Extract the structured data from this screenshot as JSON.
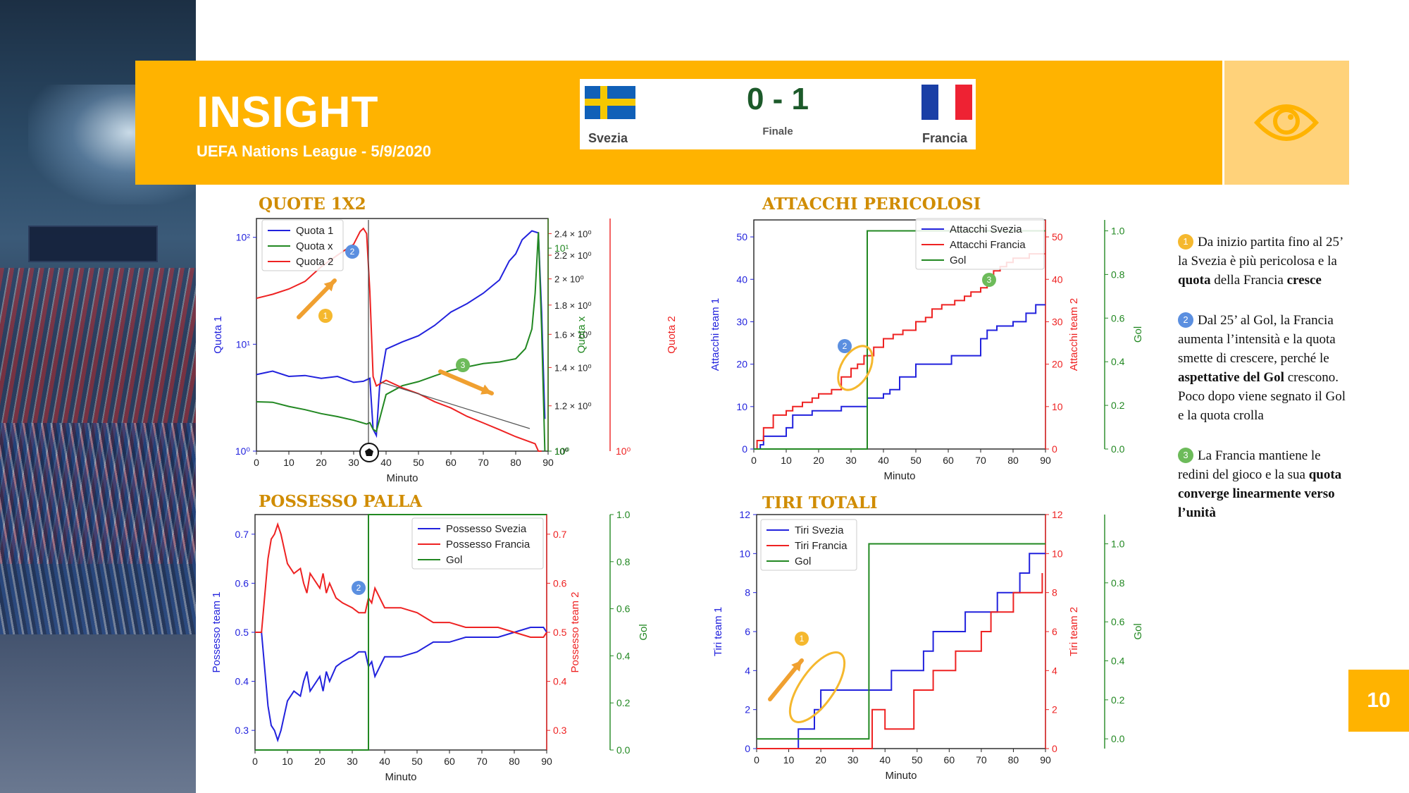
{
  "header": {
    "title": "INSIGHT",
    "subtitle": "UEFA Nations League  - 5/9/2020",
    "eye_icon": "eye-icon"
  },
  "match": {
    "home": "Svezia",
    "away": "Francia",
    "score": "0 - 1",
    "status": "Finale"
  },
  "notes": [
    {
      "badge": "1",
      "color": "#F5B82E",
      "html": "Da inizio partita fino al 25’ la Svezia è più pericolosa e la <b>quota</b> della Francia <b>cresce</b>"
    },
    {
      "badge": "2",
      "color": "#5B8FE0",
      "html": "Dal 25’ al Gol, la Francia aumenta l’intensità e la quota smette di crescere, perché le <b>aspettative del Gol</b> crescono. Poco dopo viene segnato il Gol e la quota crolla"
    },
    {
      "badge": "3",
      "color": "#6DBB5A",
      "html": "La Francia mantiene le redini del gioco e la sua <b>quota converge linearmente verso l’unità</b>"
    }
  ],
  "page_number": "10",
  "chart_data": [
    {
      "id": "quote",
      "type": "line",
      "title": "QUOTE 1X2",
      "xlabel": "Minuto",
      "xlim": [
        0,
        90
      ],
      "xticks": [
        0,
        10,
        20,
        30,
        40,
        50,
        60,
        70,
        80,
        90
      ],
      "axes": {
        "left": {
          "label": "Quota 1",
          "color": "#2222dd",
          "scale": "log",
          "lim": [
            1,
            150
          ],
          "ticks": [
            1,
            10,
            100
          ],
          "ticklabels": [
            "10⁰",
            "10¹",
            "10²"
          ]
        },
        "right1": {
          "label": "Quota 2",
          "color": "#ee2222",
          "scale": "log",
          "lim": [
            1,
            2.55
          ],
          "ticks": [
            1,
            1.2,
            1.4,
            1.6,
            1.8,
            2,
            2.2,
            2.4
          ],
          "ticklabels": [
            "10⁰",
            "1.2 × 10⁰",
            "1.4 × 10⁰",
            "1.6 × 10⁰",
            "1.8 × 10⁰",
            "2 × 10⁰",
            "2.2 × 10⁰",
            "2.4 × 10⁰"
          ]
        },
        "right2": {
          "label": "Quota x",
          "color": "#228822",
          "scale": "log",
          "lim": [
            1,
            14
          ],
          "ticks": [
            1,
            10
          ],
          "ticklabels": [
            "10⁰",
            "10¹"
          ]
        }
      },
      "series": [
        {
          "name": "Quota 1",
          "axis": "left",
          "color": "#2222dd",
          "x": [
            0,
            5,
            10,
            15,
            20,
            25,
            30,
            33,
            35,
            36,
            37,
            38,
            40,
            45,
            50,
            55,
            60,
            65,
            70,
            75,
            78,
            80,
            82,
            85,
            87,
            88,
            89
          ],
          "y": [
            5.2,
            5.6,
            5.0,
            5.1,
            4.8,
            5.0,
            4.4,
            4.5,
            4.8,
            1.6,
            1.4,
            4.0,
            9.0,
            10.5,
            12.0,
            15.0,
            20.0,
            24.0,
            30.0,
            40.0,
            60.0,
            70.0,
            95.0,
            115.0,
            110.0,
            20.0,
            2.0
          ]
        },
        {
          "name": "Quota x",
          "axis": "right2",
          "color": "#228822",
          "x": [
            0,
            5,
            10,
            15,
            20,
            25,
            30,
            34,
            35,
            36,
            37,
            40,
            45,
            50,
            55,
            60,
            65,
            70,
            75,
            80,
            83,
            85,
            86,
            87,
            88,
            89
          ],
          "y": [
            1.75,
            1.74,
            1.66,
            1.6,
            1.53,
            1.48,
            1.42,
            1.36,
            1.38,
            1.28,
            1.25,
            1.9,
            2.1,
            2.2,
            2.35,
            2.5,
            2.6,
            2.7,
            2.75,
            2.85,
            3.2,
            4.0,
            6.0,
            12.0,
            4.0,
            1.0
          ]
        },
        {
          "name": "Quota 2",
          "axis": "right1",
          "color": "#ee2222",
          "x": [
            0,
            5,
            10,
            15,
            20,
            25,
            30,
            32,
            33,
            34,
            35,
            36,
            37,
            40,
            45,
            50,
            55,
            60,
            65,
            70,
            75,
            80,
            84,
            86,
            87,
            88
          ],
          "y": [
            1.85,
            1.88,
            1.92,
            1.98,
            2.1,
            2.2,
            2.3,
            2.42,
            2.45,
            2.4,
            1.9,
            1.35,
            1.3,
            1.33,
            1.29,
            1.26,
            1.22,
            1.19,
            1.15,
            1.12,
            1.09,
            1.06,
            1.04,
            1.03,
            1.0,
            1.0
          ]
        }
      ],
      "legend": [
        "Quota 1",
        "Quota x",
        "Quota 2"
      ],
      "legend_position": "top-left"
    },
    {
      "id": "attacchi",
      "type": "line",
      "title": "ATTACCHI PERICOLOSI",
      "xlabel": "Minuto",
      "xlim": [
        0,
        90
      ],
      "xticks": [
        0,
        10,
        20,
        30,
        40,
        50,
        60,
        70,
        80,
        90
      ],
      "axes": {
        "left": {
          "label": "Attacchi team 1",
          "color": "#2222dd",
          "lim": [
            0,
            54
          ],
          "ticks": [
            0,
            10,
            20,
            30,
            40,
            50
          ]
        },
        "right1": {
          "label": "Attacchi team 2",
          "color": "#ee2222",
          "lim": [
            0,
            54
          ],
          "ticks": [
            0,
            10,
            20,
            30,
            40,
            50
          ]
        },
        "right2": {
          "label": "Gol",
          "color": "#228822",
          "lim": [
            0,
            1.05
          ],
          "ticks": [
            0,
            0.2,
            0.4,
            0.6,
            0.8,
            1.0
          ],
          "ticklabels": [
            "0.0",
            "0.2",
            "0.4",
            "0.6",
            "0.8",
            "1.0"
          ]
        }
      },
      "series": [
        {
          "name": "Attacchi Svezia",
          "axis": "left",
          "color": "#2222dd",
          "step": true,
          "x": [
            0,
            2,
            3,
            10,
            12,
            18,
            27,
            35,
            40,
            42,
            45,
            50,
            57,
            61,
            68,
            70,
            72,
            75,
            80,
            84,
            87,
            90
          ],
          "y": [
            0,
            1,
            3,
            5,
            8,
            9,
            10,
            12,
            13,
            14,
            17,
            20,
            20,
            22,
            22,
            26,
            28,
            29,
            30,
            32,
            34,
            34
          ]
        },
        {
          "name": "Attacchi Francia",
          "axis": "right1",
          "color": "#ee2222",
          "step": true,
          "x": [
            0,
            1,
            3,
            6,
            10,
            12,
            15,
            18,
            20,
            24,
            27,
            30,
            32,
            34,
            37,
            40,
            43,
            46,
            50,
            53,
            55,
            58,
            62,
            65,
            67,
            70,
            72,
            74,
            76,
            78,
            80,
            82,
            85,
            88,
            90
          ],
          "y": [
            0,
            2,
            5,
            8,
            9,
            10,
            11,
            12,
            13,
            14,
            17,
            19,
            20,
            22,
            24,
            26,
            27,
            28,
            30,
            31,
            33,
            34,
            35,
            36,
            37,
            38,
            40,
            42,
            43,
            44,
            45,
            45,
            46,
            46,
            46
          ]
        },
        {
          "name": "Gol",
          "axis": "right2",
          "color": "#228822",
          "step": true,
          "x": [
            0,
            35,
            90
          ],
          "y": [
            0,
            1,
            1
          ]
        }
      ],
      "legend": [
        "Attacchi Svezia",
        "Attacchi Francia",
        "Gol"
      ],
      "legend_position": "top-right"
    },
    {
      "id": "possesso",
      "type": "line",
      "title": "POSSESSO PALLA",
      "xlabel": "Minuto",
      "xlim": [
        0,
        90
      ],
      "xticks": [
        0,
        10,
        20,
        30,
        40,
        50,
        60,
        70,
        80,
        90
      ],
      "axes": {
        "left": {
          "label": "Possesso team 1",
          "color": "#2222dd",
          "lim": [
            0.26,
            0.74
          ],
          "ticks": [
            0.3,
            0.4,
            0.5,
            0.6,
            0.7
          ]
        },
        "right1": {
          "label": "Possesso team 2",
          "color": "#ee2222",
          "lim": [
            0.26,
            0.74
          ],
          "ticks": [
            0.3,
            0.4,
            0.5,
            0.6,
            0.7
          ]
        },
        "right2": {
          "label": "Gol",
          "color": "#228822",
          "lim": [
            0,
            1.0
          ],
          "ticks": [
            0,
            0.2,
            0.4,
            0.6,
            0.8,
            1.0
          ],
          "ticklabels": [
            "0.0",
            "0.2",
            "0.4",
            "0.6",
            "0.8",
            "1.0"
          ]
        }
      },
      "series": [
        {
          "name": "Possesso Svezia",
          "axis": "left",
          "color": "#2222dd",
          "x": [
            0,
            2,
            4,
            5,
            6,
            7,
            8,
            10,
            12,
            14,
            15,
            16,
            17,
            18,
            19,
            20,
            21,
            22,
            23,
            25,
            27,
            30,
            32,
            34,
            35,
            36,
            37,
            40,
            45,
            50,
            55,
            60,
            65,
            70,
            75,
            80,
            85,
            88,
            89,
            90
          ],
          "y": [
            0.5,
            0.5,
            0.35,
            0.31,
            0.3,
            0.28,
            0.3,
            0.36,
            0.38,
            0.37,
            0.4,
            0.42,
            0.38,
            0.39,
            0.4,
            0.41,
            0.38,
            0.42,
            0.4,
            0.43,
            0.44,
            0.45,
            0.46,
            0.46,
            0.43,
            0.44,
            0.41,
            0.45,
            0.45,
            0.46,
            0.48,
            0.48,
            0.49,
            0.49,
            0.49,
            0.5,
            0.51,
            0.51,
            0.51,
            0.5
          ]
        },
        {
          "name": "Possesso Francia",
          "axis": "right1",
          "color": "#ee2222",
          "x": [
            0,
            2,
            4,
            5,
            6,
            7,
            8,
            10,
            12,
            14,
            15,
            16,
            17,
            18,
            19,
            20,
            21,
            22,
            23,
            25,
            27,
            30,
            32,
            34,
            35,
            36,
            37,
            40,
            45,
            50,
            55,
            60,
            65,
            70,
            75,
            80,
            85,
            88,
            89,
            90
          ],
          "y": [
            0.5,
            0.5,
            0.65,
            0.69,
            0.7,
            0.72,
            0.7,
            0.64,
            0.62,
            0.63,
            0.6,
            0.58,
            0.62,
            0.61,
            0.6,
            0.59,
            0.62,
            0.58,
            0.6,
            0.57,
            0.56,
            0.55,
            0.54,
            0.54,
            0.57,
            0.56,
            0.59,
            0.55,
            0.55,
            0.54,
            0.52,
            0.52,
            0.51,
            0.51,
            0.51,
            0.5,
            0.49,
            0.49,
            0.49,
            0.5
          ]
        },
        {
          "name": "Gol",
          "axis": "right2",
          "color": "#228822",
          "step": true,
          "x": [
            0,
            35,
            90
          ],
          "y": [
            0,
            1,
            1
          ]
        }
      ],
      "legend": [
        "Possesso Svezia",
        "Possesso Francia",
        "Gol"
      ],
      "legend_position": "top-right"
    },
    {
      "id": "tiri",
      "type": "line",
      "title": "TIRI TOTALI",
      "xlabel": "Minuto",
      "xlim": [
        0,
        90
      ],
      "xticks": [
        0,
        10,
        20,
        30,
        40,
        50,
        60,
        70,
        80,
        90
      ],
      "axes": {
        "left": {
          "label": "Tiri team 1",
          "color": "#2222dd",
          "lim": [
            0,
            12
          ],
          "ticks": [
            0,
            2,
            4,
            6,
            8,
            10,
            12
          ]
        },
        "right1": {
          "label": "Tiri team 2",
          "color": "#ee2222",
          "lim": [
            0,
            12
          ],
          "ticks": [
            0,
            2,
            4,
            6,
            8,
            10,
            12
          ]
        },
        "right2": {
          "label": "Gol",
          "color": "#228822",
          "lim": [
            -0.05,
            1.15
          ],
          "ticks": [
            0,
            0.2,
            0.4,
            0.6,
            0.8,
            1.0
          ],
          "ticklabels": [
            "0.0",
            "0.2",
            "0.4",
            "0.6",
            "0.8",
            "1.0"
          ]
        }
      },
      "series": [
        {
          "name": "Tiri Svezia",
          "axis": "left",
          "color": "#2222dd",
          "step": true,
          "x": [
            0,
            12,
            13,
            18,
            20,
            40,
            42,
            52,
            55,
            60,
            65,
            73,
            75,
            80,
            82,
            85,
            87,
            90
          ],
          "y": [
            0,
            0,
            1,
            2,
            3,
            3,
            4,
            5,
            6,
            6,
            7,
            7,
            8,
            8,
            9,
            10,
            10,
            10
          ]
        },
        {
          "name": "Tiri Francia",
          "axis": "right1",
          "color": "#ee2222",
          "step": true,
          "x": [
            0,
            36,
            40,
            49,
            55,
            62,
            70,
            73,
            80,
            88,
            89
          ],
          "y": [
            0,
            2,
            1,
            3,
            4,
            5,
            6,
            7,
            8,
            8,
            9
          ]
        },
        {
          "name": "Gol",
          "axis": "right2",
          "color": "#228822",
          "step": true,
          "x": [
            0,
            35,
            90
          ],
          "y": [
            0,
            1,
            1
          ]
        }
      ],
      "legend": [
        "Tiri Svezia",
        "Tiri Francia",
        "Gol"
      ],
      "legend_position": "top-left"
    }
  ]
}
